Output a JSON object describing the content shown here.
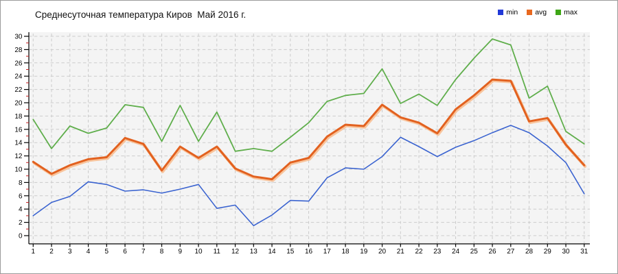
{
  "chart": {
    "title": "Среднесуточная температура Киров  Май 2016 г.",
    "plot_background": "#f4f4f4",
    "gridline_color": "#cbcbcb",
    "axis_color": "#000000",
    "minor_tick_color": "#cc2222",
    "label_color": "#000000"
  },
  "chart_data": {
    "type": "line",
    "title": "Среднесуточная температура Киров  Май 2016 г.",
    "xlabel": "",
    "ylabel": "",
    "x": [
      1,
      2,
      3,
      4,
      5,
      6,
      7,
      8,
      9,
      10,
      11,
      12,
      13,
      14,
      15,
      16,
      17,
      18,
      19,
      20,
      21,
      22,
      23,
      24,
      25,
      26,
      27,
      28,
      29,
      30,
      31
    ],
    "ylim": [
      0,
      30
    ],
    "y_major_step": 2,
    "y_minor_step": 1,
    "grid": true,
    "legend_position": "top-right",
    "series": [
      {
        "name": "min",
        "color": "#3a63d0",
        "legend_color": "#2239d8",
        "values": [
          3.0,
          5.0,
          5.9,
          8.1,
          7.7,
          6.7,
          6.9,
          6.4,
          7.0,
          7.7,
          4.1,
          4.6,
          1.5,
          3.1,
          5.3,
          5.2,
          8.7,
          10.2,
          10.0,
          11.9,
          14.8,
          13.4,
          11.9,
          13.3,
          14.3,
          15.5,
          16.6,
          15.5,
          13.5,
          11.0,
          6.3
        ]
      },
      {
        "name": "avg",
        "color": "#e2611f",
        "halo_color": "#f8c49c",
        "legend_color": "#e8681f",
        "values": [
          11.1,
          9.3,
          10.6,
          11.5,
          11.8,
          14.7,
          13.8,
          9.8,
          13.4,
          11.7,
          13.4,
          10.1,
          8.9,
          8.5,
          11.0,
          11.7,
          14.9,
          16.7,
          16.5,
          19.7,
          17.8,
          17.0,
          15.4,
          19.0,
          21.1,
          23.5,
          23.3,
          17.2,
          17.7,
          13.7,
          10.6
        ]
      },
      {
        "name": "max",
        "color": "#5fae4b",
        "legend_color": "#3ea616",
        "values": [
          17.5,
          13.1,
          16.5,
          15.4,
          16.2,
          19.7,
          19.3,
          14.2,
          19.6,
          14.2,
          18.6,
          12.7,
          13.1,
          12.7,
          14.8,
          17.0,
          20.2,
          21.1,
          21.4,
          25.1,
          19.9,
          21.3,
          19.6,
          23.5,
          26.7,
          29.6,
          28.7,
          20.7,
          22.5,
          15.7,
          13.8
        ]
      }
    ]
  }
}
